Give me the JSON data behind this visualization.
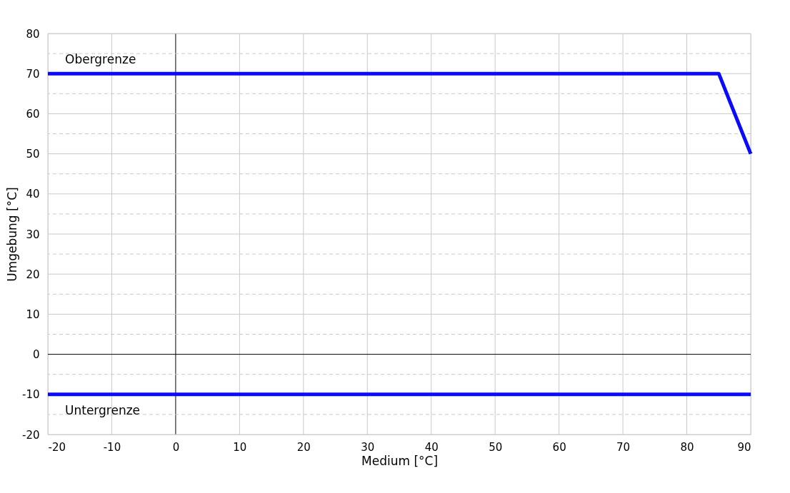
{
  "chart_data": {
    "type": "line",
    "xlabel": "Medium [°C]",
    "ylabel": "Umgebung [°C]",
    "series": [
      {
        "x": [
          -20,
          85,
          90
        ],
        "values": [
          70,
          70,
          50
        ],
        "color": "#0a0aff"
      },
      {
        "x": [
          -20,
          90
        ],
        "values": [
          -10,
          -10
        ],
        "color": "#0a0aff"
      }
    ],
    "xlim": [
      -20,
      90
    ],
    "xticks": [
      -20,
      -10,
      0,
      10,
      20,
      30,
      40,
      50,
      60,
      70,
      80,
      90
    ],
    "ylim": [
      -20,
      80
    ],
    "yticks": [
      -20,
      {
        "value": -15,
        "label": null
      },
      -10,
      {
        "value": -5,
        "label": null
      },
      0,
      {
        "value": 5,
        "label": null
      },
      10,
      {
        "value": 15,
        "label": null
      },
      20,
      {
        "value": 25,
        "label": null
      },
      30,
      {
        "value": 35,
        "label": null
      },
      40,
      {
        "value": 45,
        "label": null
      },
      50,
      {
        "value": 55,
        "label": null
      },
      60,
      {
        "value": 65,
        "label": null
      },
      70,
      {
        "value": 75,
        "label": null
      },
      80
    ],
    "grid": true,
    "marker": "none",
    "line_style": "solid",
    "annotations": [
      "Obergrenze",
      "Untergrenze"
    ]
  }
}
